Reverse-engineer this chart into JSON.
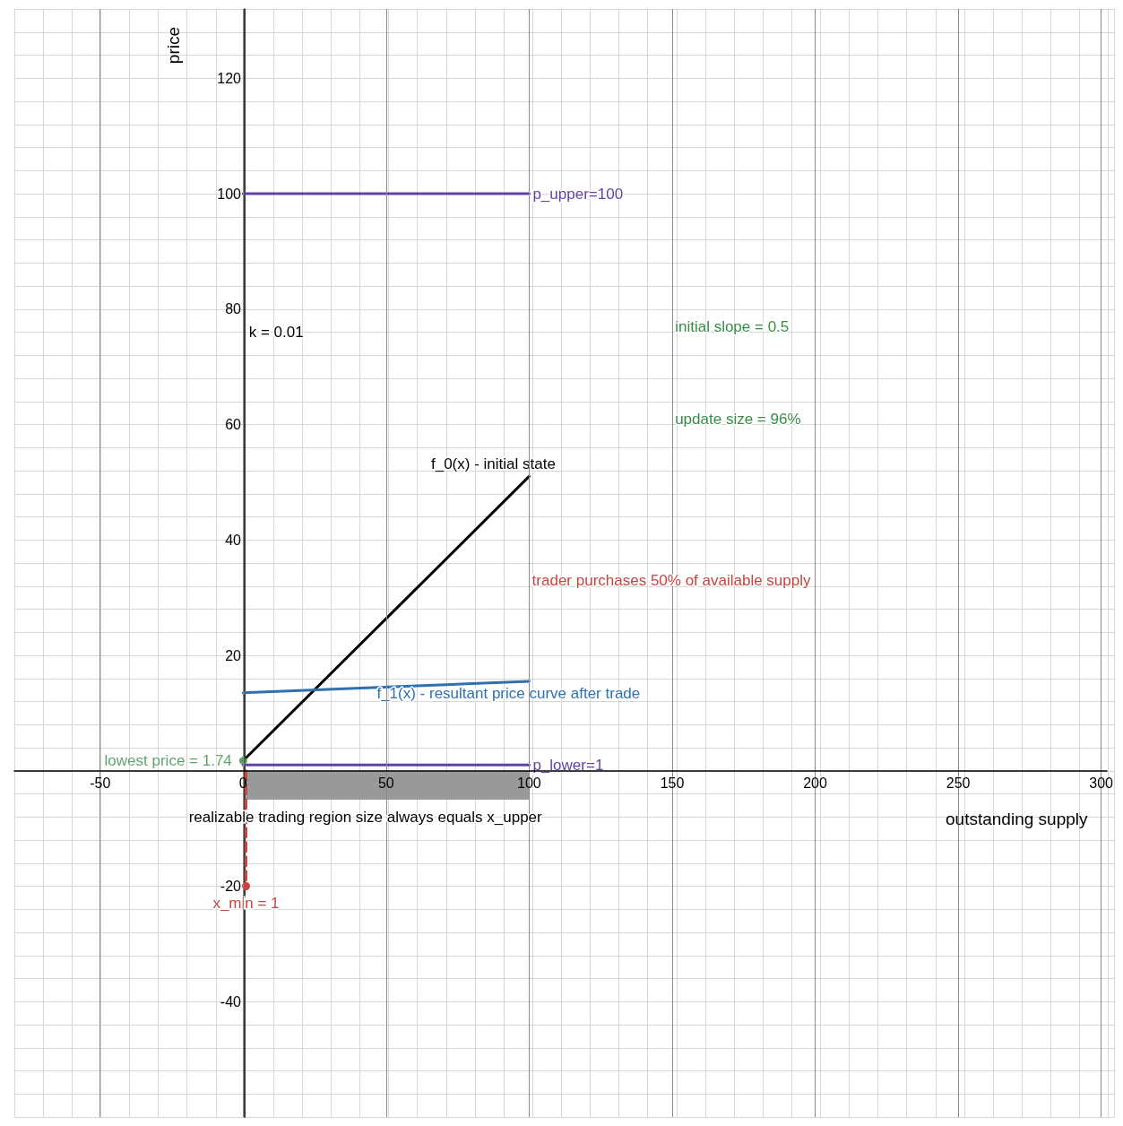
{
  "chart_data": {
    "type": "line",
    "xlabel": "outstanding supply",
    "ylabel": "price",
    "xlim": [
      -80,
      302
    ],
    "ylim": [
      -60,
      132
    ],
    "xticks": [
      -50,
      0,
      50,
      100,
      150,
      200,
      250,
      300
    ],
    "yticks": [
      -40,
      -20,
      20,
      40,
      60,
      80,
      100,
      120
    ],
    "grid": true,
    "marker": "none",
    "line_style": "solid",
    "series": [
      {
        "name": "p_upper=100",
        "color": "#6042a6",
        "x": [
          0,
          100
        ],
        "values": [
          100,
          100
        ]
      },
      {
        "name": "p_lower=1",
        "color": "#6042a6",
        "x": [
          0,
          100
        ],
        "values": [
          1,
          1
        ]
      },
      {
        "name": "f_0(x) - initial state",
        "color": "#000000",
        "x": [
          0,
          100
        ],
        "values": [
          1.74,
          51
        ]
      },
      {
        "name": "f_1(x) - resultant price curve after trade",
        "color": "#2d70b3",
        "x": [
          0,
          100
        ],
        "values": [
          13.5,
          15.5
        ]
      },
      {
        "type": "area",
        "color": "#999999",
        "x": [
          1,
          100
        ],
        "values": [
          -5,
          -5
        ]
      },
      {
        "name": "x_min = 1",
        "color": "#c74440",
        "x": [
          1,
          1
        ],
        "values": [
          0,
          -20
        ],
        "line_style": "dashed",
        "marker": "circle"
      },
      {
        "type": "scatter",
        "name": "lowest price = 1.74",
        "color": "#388c46",
        "x": [
          0
        ],
        "values": [
          1.74
        ],
        "marker": "circle"
      }
    ],
    "annotations": [
      "k = 0.01",
      "initial slope = 0.5",
      "update size = 96%",
      "trader purchases 50% of available supply",
      "realizable trading region size always equals x_upper"
    ]
  }
}
